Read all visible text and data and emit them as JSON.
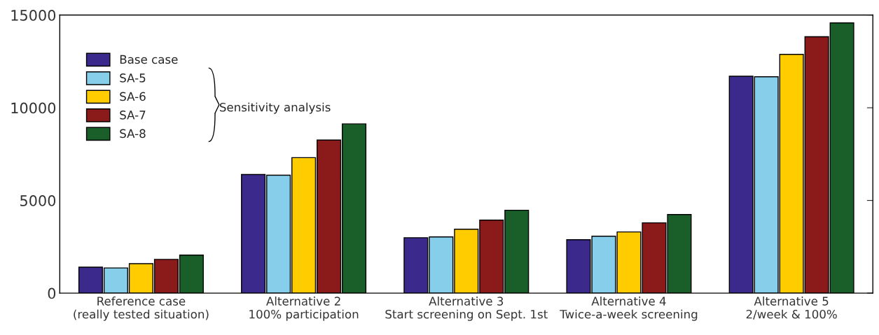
{
  "chart_data": {
    "type": "bar",
    "categories": [
      "Reference case\n(really tested situation)",
      "Alternative 2\n100% participation",
      "Alternative 3\nStart screening on Sept. 1st",
      "Alternative 4\nTwice-a-week screening",
      "Alternative 5\n2/week & 100%"
    ],
    "series": [
      {
        "name": "Base case",
        "color": "#3b2a8c",
        "values": [
          1400,
          6400,
          2990,
          2880,
          11700
        ]
      },
      {
        "name": "SA-5",
        "color": "#87ceeb",
        "values": [
          1360,
          6360,
          3030,
          3070,
          11670
        ]
      },
      {
        "name": "SA-6",
        "color": "#ffcc00",
        "values": [
          1590,
          7310,
          3450,
          3300,
          12880
        ]
      },
      {
        "name": "SA-7",
        "color": "#8b1a1a",
        "values": [
          1820,
          8260,
          3940,
          3790,
          13830
        ]
      },
      {
        "name": "SA-8",
        "color": "#1a5e2a",
        "values": [
          2050,
          9130,
          4470,
          4240,
          14580
        ]
      }
    ],
    "ylim": [
      0,
      15000
    ],
    "yticks": [
      0,
      5000,
      10000,
      15000
    ],
    "annotations": [
      "Sensitivity analysis"
    ],
    "legend": "top left",
    "grid": false
  }
}
